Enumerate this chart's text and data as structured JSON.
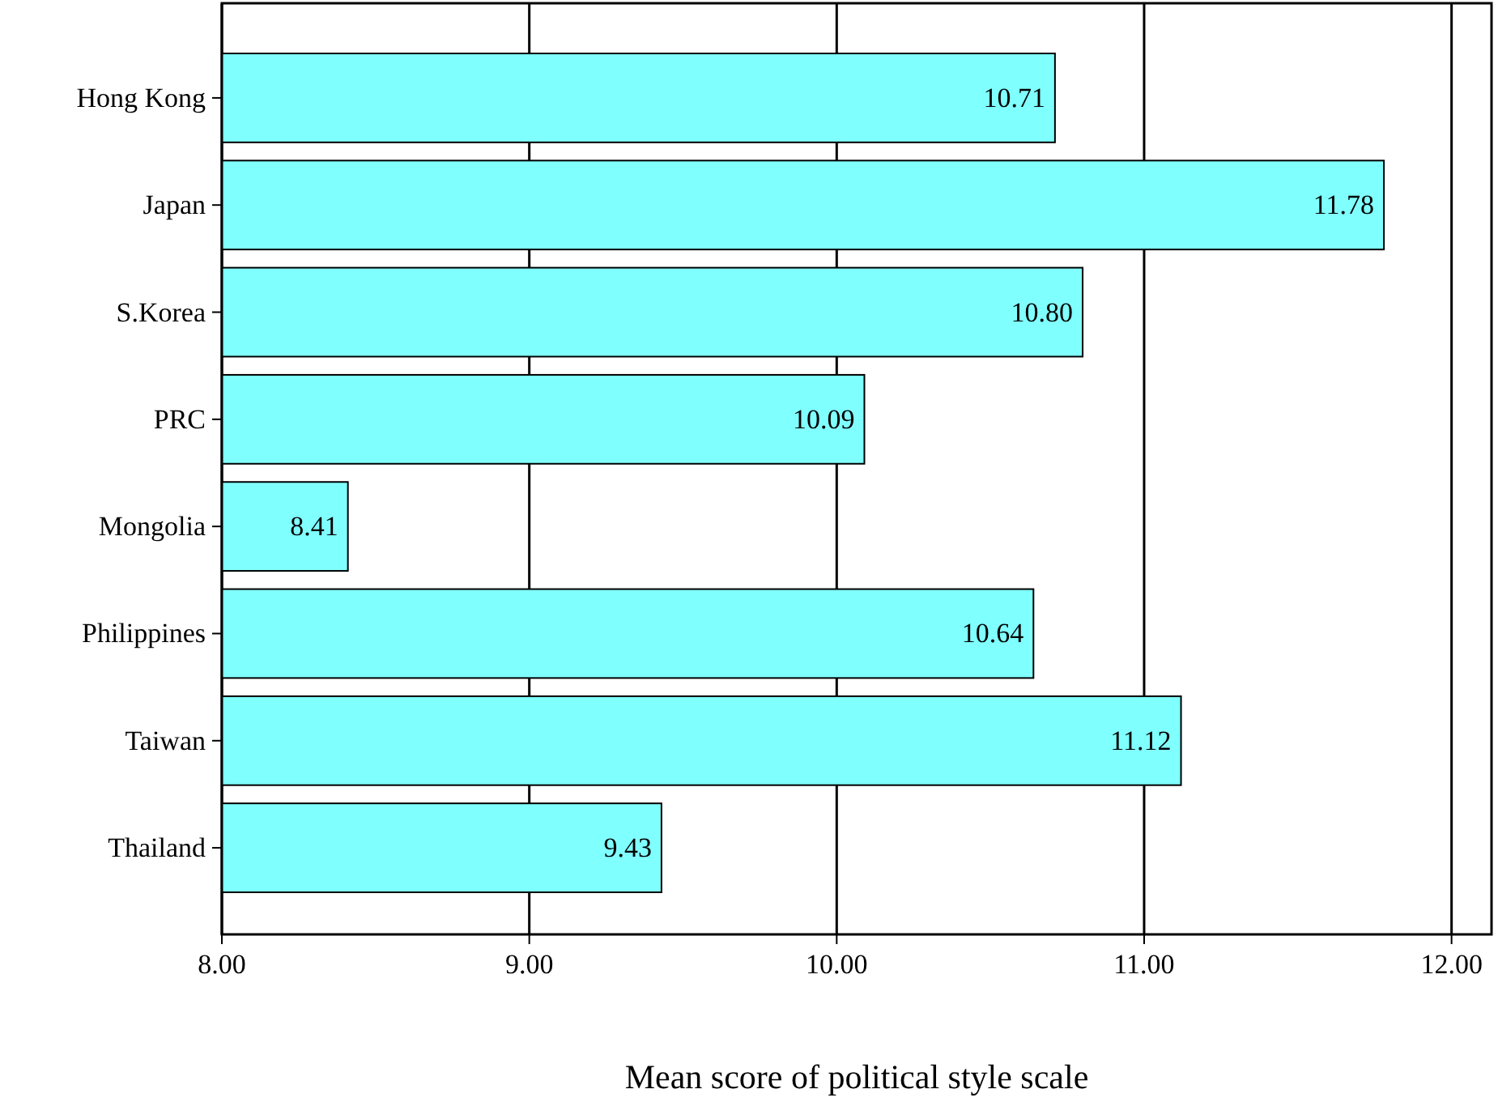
{
  "chart_data": {
    "type": "bar",
    "orientation": "horizontal",
    "categories": [
      "Hong Kong",
      "Japan",
      "S.Korea",
      "PRC",
      "Mongolia",
      "Philippines",
      "Taiwan",
      "Thailand"
    ],
    "values": [
      10.71,
      11.78,
      10.8,
      10.09,
      8.41,
      10.64,
      11.12,
      9.43
    ],
    "color": "#80ffff",
    "xlim": [
      8,
      12.13
    ],
    "xticks": [
      {
        "value": 8,
        "label": "8.00"
      },
      {
        "value": 9,
        "label": "9.00"
      },
      {
        "value": 10,
        "label": "10.00"
      },
      {
        "value": 11,
        "label": "11.00"
      },
      {
        "value": 12,
        "label": "12.00"
      }
    ],
    "value_labels": [
      "10.71",
      "11.78",
      "10.80",
      "10.09",
      "8.41",
      "10.64",
      "11.12",
      "9.43"
    ],
    "xlabel": "Mean score of political style scale",
    "grid": "x"
  }
}
